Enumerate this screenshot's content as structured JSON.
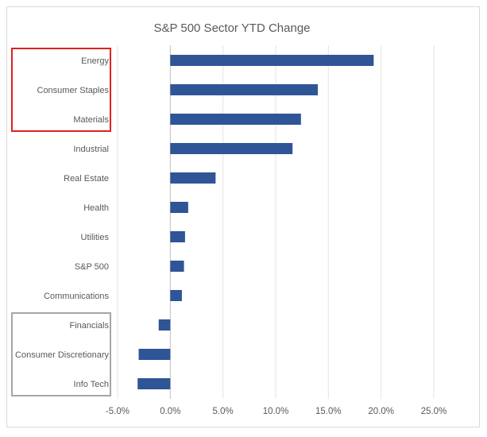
{
  "chart_data": {
    "type": "bar",
    "orientation": "horizontal",
    "title": "S&P 500 Sector YTD Change",
    "xlabel": "",
    "ylabel": "",
    "categories": [
      "Energy",
      "Consumer Staples",
      "Materials",
      "Industrial",
      "Real Estate",
      "Health",
      "Utilities",
      "S&P 500",
      "Communications",
      "Financials",
      "Consumer Discretionary",
      "Info Tech"
    ],
    "values": [
      19.3,
      14.0,
      12.4,
      11.6,
      4.3,
      1.7,
      1.4,
      1.3,
      1.1,
      -1.1,
      -3.0,
      -3.1
    ],
    "xlim": [
      -5.0,
      25.0
    ],
    "ticks": [
      -5.0,
      0.0,
      5.0,
      10.0,
      15.0,
      20.0,
      25.0
    ],
    "tick_labels": [
      "-5.0%",
      "0.0%",
      "5.0%",
      "10.0%",
      "15.0%",
      "20.0%",
      "25.0%"
    ],
    "grid": true,
    "legend": "none",
    "bar_color": "#2f5597",
    "highlight_groups": [
      {
        "name": "top-sectors",
        "color": "#e02020",
        "categories": [
          "Energy",
          "Consumer Staples",
          "Materials"
        ]
      },
      {
        "name": "bottom-sectors",
        "color": "#a6a6a6",
        "categories": [
          "Financials",
          "Consumer Discretionary",
          "Info Tech"
        ]
      }
    ]
  }
}
